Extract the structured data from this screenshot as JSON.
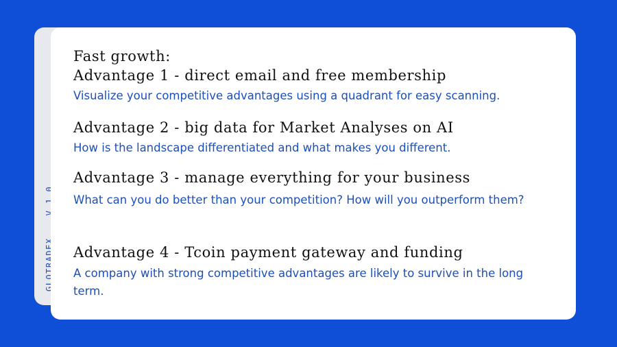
{
  "side": {
    "brand": "GLOTRADEX",
    "version": "V 1.0"
  },
  "slide": {
    "title": "Fast growth:",
    "advantages": [
      {
        "title": "Advantage 1  -  direct email and free membership",
        "description": "Visualize your competitive advantages using a quadrant for easy scanning."
      },
      {
        "title": "Advantage 2  -  big data for Market Analyses on AI",
        "description": "How is the landscape differentiated and what makes you different."
      },
      {
        "title": "Advantage 3  -  manage everything for your business",
        "description": "What can you do better than your competition? How will you outperform them?"
      },
      {
        "title": "Advantage 4  -  Tcoin payment gateway and funding",
        "description": "A company with strong competitive advantages are likely to survive in the long term."
      }
    ]
  },
  "colors": {
    "background": "#0f4fd8",
    "card": "#ffffff",
    "tab": "#e8e9ee",
    "accent_text": "#1d4fb8",
    "heading_text": "#111111"
  }
}
